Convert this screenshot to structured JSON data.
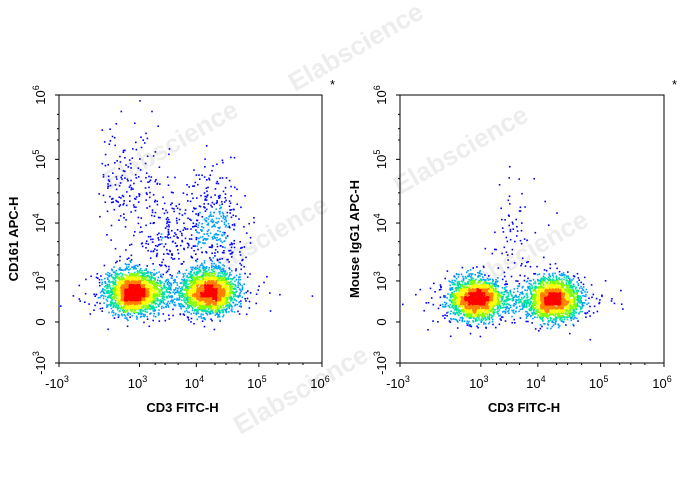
{
  "watermark": "Elabscience",
  "chart_data": [
    {
      "type": "scatter",
      "title": "",
      "xlabel": "CD3 FITC-H",
      "ylabel": "CD161 APC-H",
      "corner_mark": "*",
      "x_scale": "biexponential",
      "y_scale": "biexponential",
      "xlim": [
        -1000,
        1000000
      ],
      "ylim": [
        -1000,
        1000000
      ],
      "x_ticks": [
        {
          "base": "-10",
          "exp": "3",
          "value": -1000
        },
        {
          "base": "10",
          "exp": "3",
          "value": 1000
        },
        {
          "base": "10",
          "exp": "4",
          "value": 10000
        },
        {
          "base": "10",
          "exp": "5",
          "value": 100000
        },
        {
          "base": "10",
          "exp": "6",
          "value": 1000000
        }
      ],
      "y_ticks": [
        {
          "base": "-10",
          "exp": "3",
          "value": -1000
        },
        {
          "base": "0",
          "exp": "",
          "value": 0
        },
        {
          "base": "10",
          "exp": "3",
          "value": 1000
        },
        {
          "base": "10",
          "exp": "4",
          "value": 10000
        },
        {
          "base": "10",
          "exp": "5",
          "value": 100000
        },
        {
          "base": "10",
          "exp": "6",
          "value": 1000000
        }
      ],
      "clusters": [
        {
          "x": 700,
          "y": 600,
          "n": 2200
        },
        {
          "x": 16000,
          "y": 600,
          "n": 2000
        },
        {
          "x": 4500,
          "y": 500,
          "n": 500
        },
        {
          "x": 650,
          "y": 45000,
          "n": 170
        },
        {
          "x": 18000,
          "y": 8000,
          "n": 420
        },
        {
          "x": 3000,
          "y": 5000,
          "n": 200
        }
      ]
    },
    {
      "type": "scatter",
      "title": "",
      "xlabel": "CD3 FITC-H",
      "ylabel": "Mouse IgG1 APC-H",
      "corner_mark": "*",
      "x_scale": "biexponential",
      "y_scale": "biexponential",
      "xlim": [
        -1000,
        1000000
      ],
      "ylim": [
        -1000,
        1000000
      ],
      "x_ticks": [
        {
          "base": "-10",
          "exp": "3",
          "value": -1000
        },
        {
          "base": "10",
          "exp": "3",
          "value": 1000
        },
        {
          "base": "10",
          "exp": "4",
          "value": 10000
        },
        {
          "base": "10",
          "exp": "5",
          "value": 100000
        },
        {
          "base": "10",
          "exp": "6",
          "value": 1000000
        }
      ],
      "y_ticks": [
        {
          "base": "-10",
          "exp": "3",
          "value": -1000
        },
        {
          "base": "0",
          "exp": "",
          "value": 0
        },
        {
          "base": "10",
          "exp": "3",
          "value": 1000
        },
        {
          "base": "10",
          "exp": "4",
          "value": 10000
        },
        {
          "base": "10",
          "exp": "5",
          "value": 100000
        },
        {
          "base": "10",
          "exp": "6",
          "value": 1000000
        }
      ],
      "clusters": [
        {
          "x": 750,
          "y": 400,
          "n": 1900
        },
        {
          "x": 18000,
          "y": 400,
          "n": 1800
        },
        {
          "x": 4500,
          "y": 350,
          "n": 500
        },
        {
          "x": 5000,
          "y": 4000,
          "n": 80
        }
      ]
    }
  ],
  "colors": {
    "density_ramp": [
      "#0000ff",
      "#00a0ff",
      "#00e0a0",
      "#80ff00",
      "#ffff00",
      "#ff8000",
      "#ff0000"
    ],
    "axis": "#000000",
    "watermark": "#dddddd"
  }
}
